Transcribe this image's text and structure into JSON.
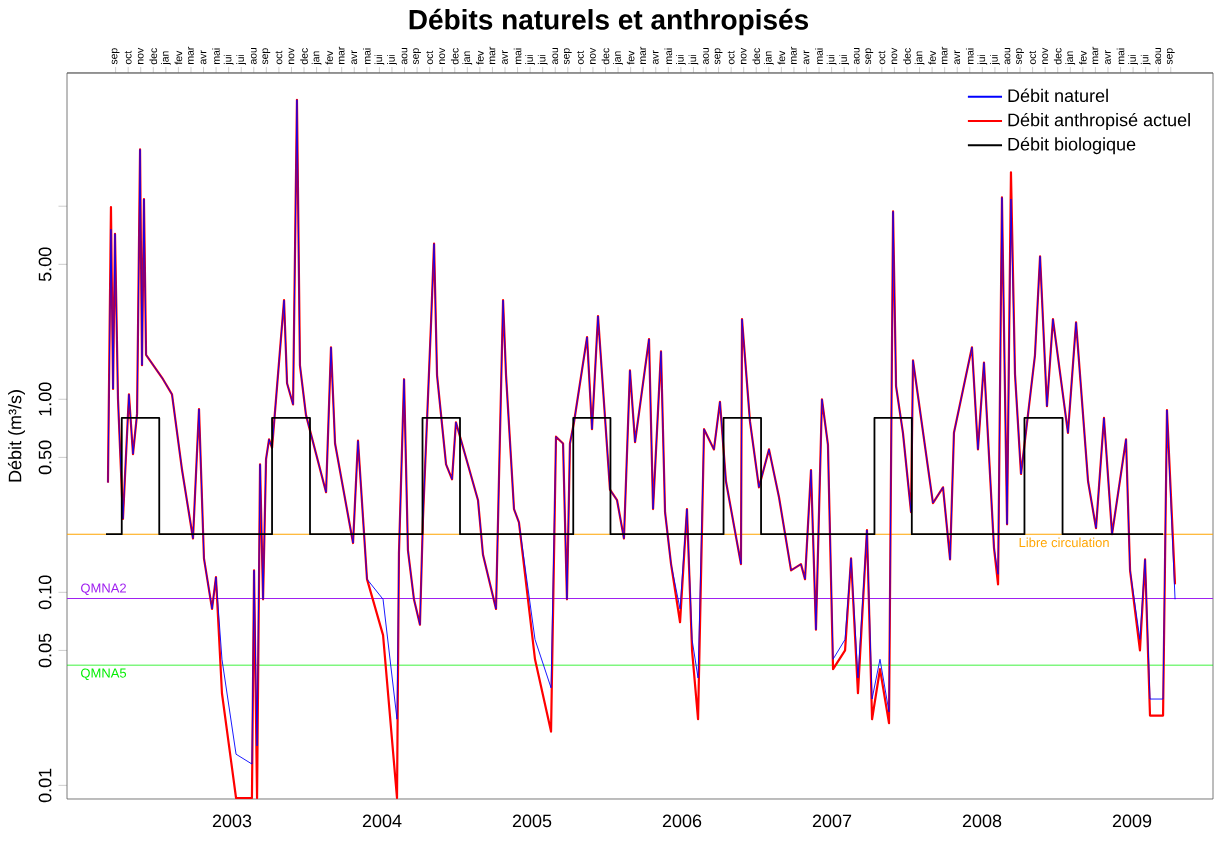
{
  "chart_data": {
    "type": "line",
    "title": "Débits naturels et anthropisés",
    "ylabel": "Débit (m³/s)",
    "xlim": [
      2001.9,
      2009.54
    ],
    "xticks": [
      2003,
      2004,
      2005,
      2006,
      2007,
      2008,
      2009
    ],
    "x2lim": [
      "2002-05-05",
      "2009-12-12"
    ],
    "x2ticks": [
      {
        "value": "2002-09",
        "label": "sep"
      },
      {
        "value": "2002-10",
        "label": "oct"
      },
      {
        "value": "2002-11",
        "label": "nov"
      },
      {
        "value": "2002-12",
        "label": "dec"
      },
      {
        "value": "2003-01",
        "label": "jan"
      },
      {
        "value": "2003-02",
        "label": "fev"
      },
      {
        "value": "2003-03",
        "label": "mar"
      },
      {
        "value": "2003-04",
        "label": "avr"
      },
      {
        "value": "2003-05",
        "label": "mai"
      },
      {
        "value": "2003-06",
        "label": "jui"
      },
      {
        "value": "2003-07",
        "label": "jui"
      },
      {
        "value": "2003-08",
        "label": "aou"
      },
      {
        "value": "2003-09",
        "label": "sep"
      },
      {
        "value": "2003-10",
        "label": "oct"
      },
      {
        "value": "2003-11",
        "label": "nov"
      },
      {
        "value": "2003-12",
        "label": "dec"
      },
      {
        "value": "2004-01",
        "label": "jan"
      },
      {
        "value": "2004-02",
        "label": "fev"
      },
      {
        "value": "2004-03",
        "label": "mar"
      },
      {
        "value": "2004-04",
        "label": "avr"
      },
      {
        "value": "2004-05",
        "label": "mai"
      },
      {
        "value": "2004-06",
        "label": "jui"
      },
      {
        "value": "2004-07",
        "label": "jui"
      },
      {
        "value": "2004-08",
        "label": "aou"
      },
      {
        "value": "2004-09",
        "label": "sep"
      },
      {
        "value": "2004-10",
        "label": "oct"
      },
      {
        "value": "2004-11",
        "label": "nov"
      },
      {
        "value": "2004-12",
        "label": "dec"
      },
      {
        "value": "2005-01",
        "label": "jan"
      },
      {
        "value": "2005-02",
        "label": "fev"
      },
      {
        "value": "2005-03",
        "label": "mar"
      },
      {
        "value": "2005-04",
        "label": "avr"
      },
      {
        "value": "2005-05",
        "label": "mai"
      },
      {
        "value": "2005-06",
        "label": "jui"
      },
      {
        "value": "2005-07",
        "label": "jui"
      },
      {
        "value": "2005-08",
        "label": "aou"
      },
      {
        "value": "2005-09",
        "label": "sep"
      },
      {
        "value": "2005-10",
        "label": "oct"
      },
      {
        "value": "2005-11",
        "label": "nov"
      },
      {
        "value": "2005-12",
        "label": "dec"
      },
      {
        "value": "2006-01",
        "label": "jan"
      },
      {
        "value": "2006-02",
        "label": "fev"
      },
      {
        "value": "2006-03",
        "label": "mar"
      },
      {
        "value": "2006-04",
        "label": "avr"
      },
      {
        "value": "2006-05",
        "label": "mai"
      },
      {
        "value": "2006-06",
        "label": "jui"
      },
      {
        "value": "2006-07",
        "label": "jui"
      },
      {
        "value": "2006-08",
        "label": "aou"
      },
      {
        "value": "2006-09",
        "label": "sep"
      },
      {
        "value": "2006-10",
        "label": "oct"
      },
      {
        "value": "2006-11",
        "label": "nov"
      },
      {
        "value": "2006-12",
        "label": "dec"
      },
      {
        "value": "2007-01",
        "label": "jan"
      },
      {
        "value": "2007-02",
        "label": "fev"
      },
      {
        "value": "2007-03",
        "label": "mar"
      },
      {
        "value": "2007-04",
        "label": "avr"
      },
      {
        "value": "2007-05",
        "label": "mai"
      },
      {
        "value": "2007-06",
        "label": "jui"
      },
      {
        "value": "2007-07",
        "label": "jui"
      },
      {
        "value": "2007-08",
        "label": "aou"
      },
      {
        "value": "2007-09",
        "label": "sep"
      },
      {
        "value": "2007-10",
        "label": "oct"
      },
      {
        "value": "2007-11",
        "label": "nov"
      },
      {
        "value": "2007-12",
        "label": "dec"
      },
      {
        "value": "2008-01",
        "label": "jan"
      },
      {
        "value": "2008-02",
        "label": "fev"
      },
      {
        "value": "2008-03",
        "label": "mar"
      },
      {
        "value": "2008-04",
        "label": "avr"
      },
      {
        "value": "2008-05",
        "label": "mai"
      },
      {
        "value": "2008-06",
        "label": "jui"
      },
      {
        "value": "2008-07",
        "label": "jui"
      },
      {
        "value": "2008-08",
        "label": "aou"
      },
      {
        "value": "2008-09",
        "label": "sep"
      },
      {
        "value": "2008-10",
        "label": "oct"
      },
      {
        "value": "2008-11",
        "label": "nov"
      },
      {
        "value": "2008-12",
        "label": "dec"
      },
      {
        "value": "2009-01",
        "label": "jan"
      },
      {
        "value": "2009-02",
        "label": "fev"
      },
      {
        "value": "2009-03",
        "label": "mar"
      },
      {
        "value": "2009-04",
        "label": "avr"
      },
      {
        "value": "2009-05",
        "label": "mai"
      },
      {
        "value": "2009-06",
        "label": "jui"
      },
      {
        "value": "2009-07",
        "label": "jui"
      },
      {
        "value": "2009-08",
        "label": "aou"
      },
      {
        "value": "2009-09",
        "label": "sep"
      }
    ],
    "ylim": [
      0.0085,
      49
    ],
    "yticks": [
      {
        "value": 0.01,
        "label": "0.01"
      },
      {
        "value": 0.05,
        "label": "0.05"
      },
      {
        "value": 0.1,
        "label": "0.10"
      },
      {
        "value": 0.5,
        "label": "0.50"
      },
      {
        "value": 1,
        "label": "1.00"
      },
      {
        "value": 5,
        "label": "5.00"
      },
      {
        "value": 10,
        "label": null
      }
    ],
    "log": "y",
    "legend": "top right",
    "x": [
      2002.173,
      2002.193,
      2002.207,
      2002.22,
      2002.24,
      2002.273,
      2002.313,
      2002.34,
      2002.367,
      2002.387,
      2002.4,
      2002.413,
      2002.427,
      2002.54,
      2002.6,
      2002.667,
      2002.74,
      2002.78,
      2002.813,
      2002.867,
      2002.893,
      2002.933,
      2003.027,
      2003.133,
      2003.147,
      2003.167,
      2003.187,
      2003.207,
      2003.227,
      2003.247,
      2003.267,
      2003.347,
      2003.367,
      2003.407,
      2003.433,
      2003.453,
      2003.493,
      2003.627,
      2003.66,
      2003.687,
      2003.807,
      2003.84,
      2003.9,
      2004.007,
      2004.1,
      2004.113,
      2004.147,
      2004.173,
      2004.213,
      2004.253,
      2004.273,
      2004.327,
      2004.347,
      2004.367,
      2004.427,
      2004.467,
      2004.493,
      2004.64,
      2004.673,
      2004.76,
      2004.807,
      2004.827,
      2004.88,
      2004.913,
      2005.02,
      2005.127,
      2005.16,
      2005.207,
      2005.233,
      2005.253,
      2005.28,
      2005.367,
      2005.4,
      2005.44,
      2005.52,
      2005.567,
      2005.613,
      2005.653,
      2005.687,
      2005.78,
      2005.807,
      2005.86,
      2005.887,
      2005.927,
      2005.987,
      2006.033,
      2006.067,
      2006.107,
      2006.147,
      2006.213,
      2006.253,
      2006.293,
      2006.393,
      2006.4,
      2006.453,
      2006.513,
      2006.58,
      2006.647,
      2006.727,
      2006.793,
      2006.82,
      2006.86,
      2006.893,
      2006.933,
      2006.973,
      2007.007,
      2007.087,
      2007.127,
      2007.173,
      2007.233,
      2007.267,
      2007.32,
      2007.38,
      2007.407,
      2007.427,
      2007.473,
      2007.527,
      2007.54,
      2007.673,
      2007.74,
      2007.787,
      2007.813,
      2007.933,
      2007.973,
      2008.013,
      2008.08,
      2008.107,
      2008.133,
      2008.167,
      2008.193,
      2008.22,
      2008.26,
      2008.353,
      2008.387,
      2008.433,
      2008.473,
      2008.573,
      2008.627,
      2008.707,
      2008.76,
      2008.813,
      2008.867,
      2008.96,
      2008.987,
      2009.053,
      2009.087,
      2009.12,
      2009.207,
      2009.233,
      2009.287
    ],
    "series": [
      {
        "name": "Débit naturel",
        "color": "#0000ff",
        "values": [
          0.37,
          7.6,
          1.13,
          7.2,
          1.0,
          0.24,
          1.06,
          0.52,
          0.84,
          19.7,
          1.5,
          10.9,
          1.7,
          1.27,
          1.06,
          0.43,
          0.19,
          0.89,
          0.15,
          0.082,
          0.12,
          0.045,
          0.0145,
          0.0129,
          0.13,
          0.016,
          0.46,
          0.092,
          0.49,
          0.62,
          0.56,
          3.26,
          1.21,
          0.94,
          35.6,
          1.5,
          0.83,
          0.33,
          1.86,
          0.59,
          0.18,
          0.61,
          0.117,
          0.092,
          0.022,
          0.16,
          1.27,
          0.165,
          0.092,
          0.068,
          0.24,
          2.5,
          6.4,
          1.33,
          0.46,
          0.385,
          0.76,
          0.3,
          0.157,
          0.082,
          3.26,
          1.33,
          0.27,
          0.23,
          0.057,
          0.032,
          0.64,
          0.59,
          0.092,
          0.59,
          0.76,
          2.1,
          0.7,
          2.7,
          0.34,
          0.3,
          0.19,
          1.41,
          0.6,
          2.05,
          0.27,
          1.77,
          0.26,
          0.14,
          0.082,
          0.27,
          0.057,
          0.036,
          0.7,
          0.55,
          0.97,
          0.376,
          0.14,
          2.6,
          0.77,
          0.35,
          0.55,
          0.31,
          0.13,
          0.14,
          0.117,
          0.43,
          0.064,
          1.0,
          0.58,
          0.045,
          0.057,
          0.15,
          0.036,
          0.21,
          0.028,
          0.045,
          0.024,
          9.4,
          1.17,
          0.67,
          0.26,
          1.59,
          0.29,
          0.35,
          0.148,
          0.67,
          1.86,
          0.55,
          1.55,
          0.17,
          0.124,
          11.1,
          0.225,
          10.9,
          1.35,
          0.41,
          1.69,
          5.5,
          0.92,
          2.6,
          0.67,
          2.5,
          0.376,
          0.215,
          0.8,
          0.2,
          0.62,
          0.13,
          0.057,
          0.148,
          0.028,
          0.028,
          0.88,
          0.092
        ]
      },
      {
        "name": "Débit anthropisé actuel",
        "color": "#ff0000",
        "values": [
          0.37,
          9.9,
          1.13,
          7.2,
          1.0,
          0.24,
          1.06,
          0.52,
          0.84,
          19.7,
          1.5,
          10.9,
          1.7,
          1.27,
          1.06,
          0.43,
          0.19,
          0.89,
          0.15,
          0.082,
          0.12,
          0.03,
          0.0086,
          0.0086,
          0.13,
          0.0086,
          0.46,
          0.092,
          0.49,
          0.62,
          0.56,
          3.26,
          1.21,
          0.94,
          35.6,
          1.5,
          0.83,
          0.33,
          1.86,
          0.59,
          0.18,
          0.61,
          0.117,
          0.06,
          0.0086,
          0.16,
          1.27,
          0.165,
          0.092,
          0.068,
          0.24,
          2.5,
          6.4,
          1.33,
          0.46,
          0.385,
          0.76,
          0.3,
          0.157,
          0.082,
          3.26,
          1.33,
          0.27,
          0.23,
          0.045,
          0.019,
          0.64,
          0.59,
          0.092,
          0.59,
          0.76,
          2.1,
          0.7,
          2.7,
          0.34,
          0.3,
          0.19,
          1.41,
          0.6,
          2.05,
          0.27,
          1.77,
          0.26,
          0.14,
          0.07,
          0.27,
          0.05,
          0.022,
          0.7,
          0.55,
          0.97,
          0.376,
          0.14,
          2.6,
          0.77,
          0.35,
          0.55,
          0.31,
          0.13,
          0.14,
          0.117,
          0.43,
          0.064,
          1.0,
          0.58,
          0.04,
          0.05,
          0.15,
          0.03,
          0.21,
          0.022,
          0.04,
          0.021,
          9.4,
          1.17,
          0.67,
          0.26,
          1.59,
          0.29,
          0.35,
          0.148,
          0.67,
          1.86,
          0.55,
          1.55,
          0.17,
          0.11,
          11.1,
          0.225,
          15,
          1.35,
          0.41,
          1.69,
          5.5,
          0.92,
          2.6,
          0.67,
          2.5,
          0.376,
          0.215,
          0.8,
          0.2,
          0.62,
          0.13,
          0.05,
          0.148,
          0.023,
          0.023,
          0.88,
          0.11
        ]
      },
      {
        "name": "Débit biologique",
        "color": "#000000",
        "type": "step",
        "x": [
          2002.16,
          2002.265,
          2002.515,
          2003.267,
          2003.52,
          2004.27,
          2004.52,
          2005.275,
          2005.523,
          2006.277,
          2006.527,
          2007.283,
          2007.532,
          2008.283,
          2008.537,
          2009.207
        ],
        "values": [
          0.2,
          0.8,
          0.2,
          0.8,
          0.2,
          0.8,
          0.2,
          0.8,
          0.2,
          0.8,
          0.2,
          0.8,
          0.2,
          0.8,
          0.2,
          0.2
        ]
      }
    ],
    "ref_lines": [
      {
        "axis": "y",
        "value": 0.2,
        "label": "Libre circulation",
        "color": "#ffa500"
      },
      {
        "axis": "y",
        "value": 0.093,
        "label": "QMNA2",
        "color": "#a020f0"
      },
      {
        "axis": "y",
        "value": 0.042,
        "label": "QMNA5",
        "color": "#00ee00"
      }
    ]
  }
}
